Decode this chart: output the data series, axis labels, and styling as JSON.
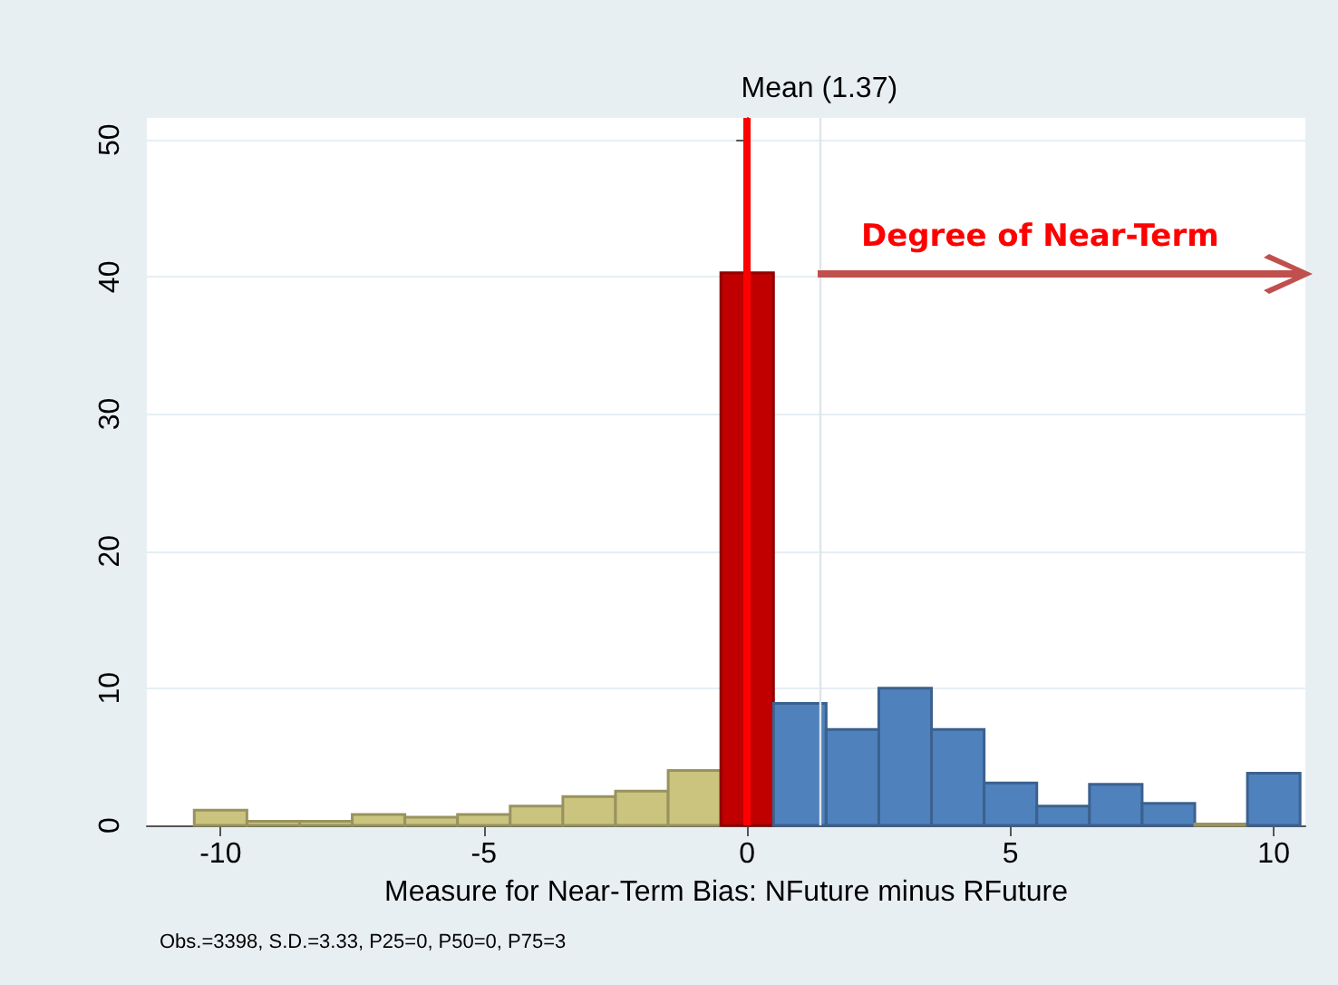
{
  "chart_data": {
    "type": "histogram",
    "xlabel": "Measure for Near-Term Bias: NFuture minus RFuture",
    "bins": [
      -10.5,
      -9.5,
      -8.5,
      -7.5,
      -6.5,
      -5.5,
      -4.5,
      -3.5,
      -2.5,
      -1.5,
      -0.5,
      0.5,
      1.5,
      2.5,
      3.5,
      4.5,
      5.5,
      6.5,
      7.5,
      8.5,
      9.5,
      10.5
    ],
    "values": [
      1.1,
      0.3,
      0.3,
      0.8,
      0.6,
      0.8,
      1.4,
      2.1,
      2.5,
      4.0,
      40.3,
      8.9,
      7.0,
      10.0,
      7.0,
      3.1,
      1.4,
      3.0,
      1.6,
      0.1,
      3.8
    ],
    "colors": [
      "#cbc47f",
      "#cbc47f",
      "#cbc47f",
      "#cbc47f",
      "#cbc47f",
      "#cbc47f",
      "#cbc47f",
      "#cbc47f",
      "#cbc47f",
      "#cbc47f",
      "#c00000",
      "#4f81bd",
      "#4f81bd",
      "#4f81bd",
      "#4f81bd",
      "#4f81bd",
      "#4f81bd",
      "#4f81bd",
      "#4f81bd",
      "#cbc47f",
      "#4f81bd"
    ],
    "xlim": [
      -11.4,
      10.6
    ],
    "xticks": [
      -10,
      -5,
      0,
      5,
      10
    ],
    "ylim": [
      0,
      51.6
    ],
    "yticks": [
      0,
      10,
      20,
      30,
      40,
      50
    ],
    "grid": "y",
    "ref_lines": [
      {
        "axis": "x",
        "value": 1.37,
        "label": "Mean (1.37)",
        "color": "#dde6ea"
      },
      {
        "axis": "x",
        "value": 0,
        "color": "#ff0000"
      }
    ],
    "annotations": [
      "Degree of Near-Term",
      "Obs.=3398, S.D.=3.33, P25=0, P50=0, P75=3"
    ]
  }
}
